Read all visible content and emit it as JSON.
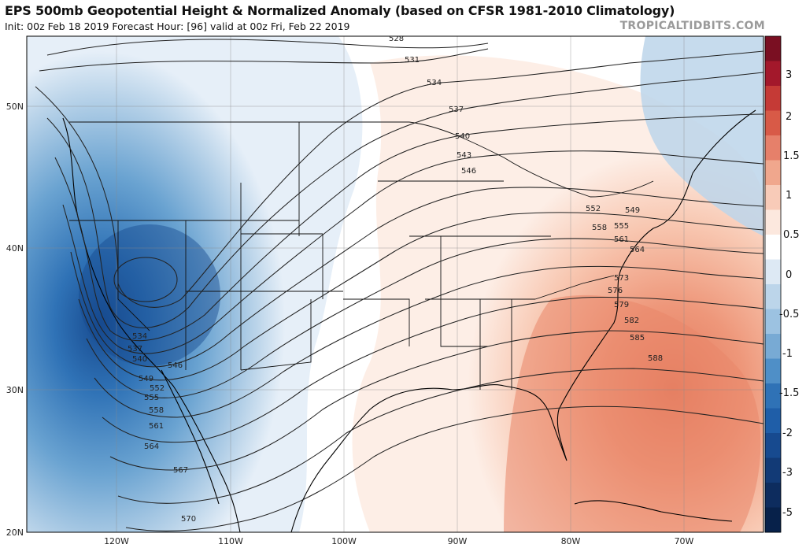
{
  "header": {
    "title": "EPS 500mb Geopotential Height & Normalized Anomaly (based on CFSR 1981-2010 Climatology)",
    "subtitle": "Init: 00z Feb 18 2019   Forecast Hour: [96]   valid at 00z Fri, Feb 22 2019",
    "watermark": "TROPICALTIDBITS.COM"
  },
  "map": {
    "lon_labels": [
      "120W",
      "110W",
      "100W",
      "90W",
      "80W",
      "70W"
    ],
    "lat_labels": [
      "50N",
      "40N",
      "30N",
      "20N"
    ],
    "contour_labels": [
      "528",
      "531",
      "534",
      "537",
      "540",
      "543",
      "546",
      "549",
      "552",
      "555",
      "558",
      "561",
      "564",
      "567",
      "570",
      "573",
      "576",
      "579",
      "582",
      "585",
      "588"
    ],
    "colors": {
      "deep_blue": "#1f5ea8",
      "mid_blue": "#4f8fc7",
      "light_blue": "#c9dff0",
      "neutral": "#ffffff",
      "light_red": "#fbe0d3",
      "mid_red": "#f3a887",
      "deep_red": "#e2775a"
    }
  },
  "colorbar": {
    "labels": [
      "3",
      "2",
      "1.5",
      "1",
      "0.5",
      "0",
      "-0.5",
      "-1",
      "-1.5",
      "-2",
      "-3",
      "-5"
    ],
    "colors": [
      "#7a0f22",
      "#a3182b",
      "#c53a36",
      "#d85a47",
      "#e6806a",
      "#f0a78d",
      "#f8cbb8",
      "#fce8de",
      "#ffffff",
      "#dde9f4",
      "#bcd5ea",
      "#9cc2e1",
      "#78aad4",
      "#4f8fc7",
      "#2f72b6",
      "#1f5ea8",
      "#174a8f",
      "#123a76",
      "#0d2c5e",
      "#07214a"
    ]
  }
}
